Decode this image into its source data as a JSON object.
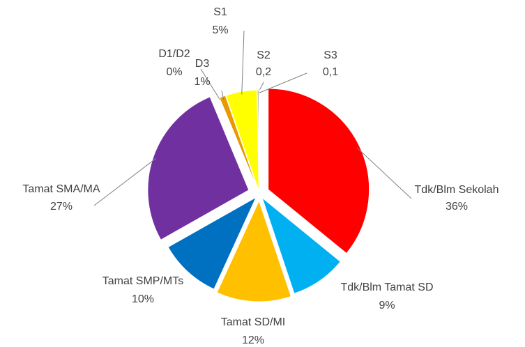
{
  "chart_data": {
    "type": "pie",
    "categories": [
      "Tdk/Blm Sekolah",
      "Tdk/Blm Tamat SD",
      "Tamat SD/MI",
      "Tamat SMP/MTs",
      "Tamat SMA/MA",
      "D1/D2",
      "D3",
      "S1",
      "S2",
      "S3"
    ],
    "values": [
      36,
      9,
      12,
      10,
      27,
      0,
      1,
      5,
      0.2,
      0.1
    ],
    "value_labels": [
      "36%",
      "9%",
      "12%",
      "10%",
      "27%",
      "0%",
      "1%",
      "5%",
      "0,2",
      "0,1"
    ],
    "colors": [
      "#ff0000",
      "#00b0f0",
      "#ffc000",
      "#0070c0",
      "#7030a0",
      "#c0504d",
      "#e69a00",
      "#ffff00",
      "#7f7f7f",
      "#4040c0"
    ]
  }
}
